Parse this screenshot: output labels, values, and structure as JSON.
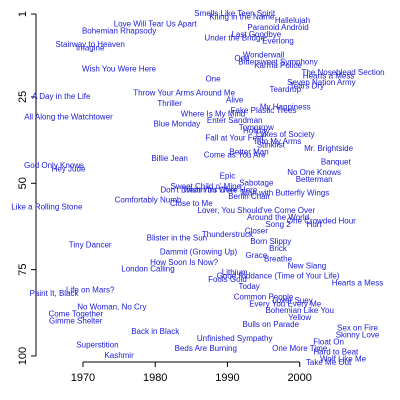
{
  "chart_data": {
    "type": "scatter",
    "title": "",
    "xlabel": "",
    "ylabel": "",
    "xlim": [
      1963.5,
      2012.5
    ],
    "ylim": [
      100,
      1
    ],
    "y_reversed": true,
    "x_ticks": [
      1970,
      1980,
      1990,
      2000
    ],
    "y_ticks": [
      1,
      25,
      50,
      75,
      100
    ],
    "grid": false,
    "legend": "none",
    "point_color": "#1a1adb",
    "points": [
      {
        "label": "Smells Like Teen Spirit",
        "x": 1991,
        "y": 1
      },
      {
        "label": "Kiling in the Name",
        "x": 1992,
        "y": 2
      },
      {
        "label": "Hallelujah",
        "x": 1999,
        "y": 3
      },
      {
        "label": "Love Will Tear Us Apart",
        "x": 1980,
        "y": 4
      },
      {
        "label": "Paranoid Android",
        "x": 1997,
        "y": 5
      },
      {
        "label": "Bohemian Rhapsody",
        "x": 1975,
        "y": 6
      },
      {
        "label": "Last Goodbye",
        "x": 1994,
        "y": 7
      },
      {
        "label": "Under the Bridge",
        "x": 1991,
        "y": 8
      },
      {
        "label": "Everlong",
        "x": 1997,
        "y": 9
      },
      {
        "label": "Stairway to Heaven",
        "x": 1971,
        "y": 10
      },
      {
        "label": "Imagine",
        "x": 1971,
        "y": 11
      },
      {
        "label": "Wonderwall",
        "x": 1995,
        "y": 13
      },
      {
        "label": "One",
        "x": 1992,
        "y": 14
      },
      {
        "label": "Bittersweet Symphony",
        "x": 1997,
        "y": 15
      },
      {
        "label": "Karma Police",
        "x": 1997,
        "y": 16
      },
      {
        "label": "Wish You Were Here",
        "x": 1975,
        "y": 17
      },
      {
        "label": "The Noseblead Section",
        "x": 2006,
        "y": 18
      },
      {
        "label": "Hearts a Mess",
        "x": 2004,
        "y": 19
      },
      {
        "label": "One",
        "x": 1988,
        "y": 20
      },
      {
        "label": "Seven Nation Army",
        "x": 2003,
        "y": 21
      },
      {
        "label": "Tears Dry",
        "x": 2001,
        "y": 22
      },
      {
        "label": "Teardrop",
        "x": 1998,
        "y": 23
      },
      {
        "label": "Throw Your Arms Around Me",
        "x": 1984,
        "y": 24
      },
      {
        "label": "A Day in the Life",
        "x": 1967,
        "y": 25
      },
      {
        "label": "Alive",
        "x": 1991,
        "y": 26
      },
      {
        "label": "Thriller",
        "x": 1982,
        "y": 27
      },
      {
        "label": "My Happiness",
        "x": 1998,
        "y": 28
      },
      {
        "label": "Fake Plastic Trees",
        "x": 1995,
        "y": 29
      },
      {
        "label": "Where Is My Mind",
        "x": 1988,
        "y": 30
      },
      {
        "label": "All Along the Watchtower",
        "x": 1968,
        "y": 31
      },
      {
        "label": "Enter Sandman",
        "x": 1991,
        "y": 32
      },
      {
        "label": "Blue Monday",
        "x": 1983,
        "y": 33
      },
      {
        "label": "Tomorrow",
        "x": 1994,
        "y": 34
      },
      {
        "label": "Holiday",
        "x": 1994,
        "y": 35
      },
      {
        "label": "Lakes of Society",
        "x": 1998,
        "y": 36
      },
      {
        "label": "Fall at Your Feet",
        "x": 1991,
        "y": 37
      },
      {
        "label": "Into My Arms",
        "x": 1997,
        "y": 38
      },
      {
        "label": "Stinkfist",
        "x": 1996,
        "y": 39
      },
      {
        "label": "Mr. Brightside",
        "x": 2004,
        "y": 40
      },
      {
        "label": "Better Man",
        "x": 1993,
        "y": 41
      },
      {
        "label": "Come as You Are",
        "x": 1991,
        "y": 42
      },
      {
        "label": "Billie Jean",
        "x": 1982,
        "y": 43
      },
      {
        "label": "Banquet",
        "x": 2005,
        "y": 44
      },
      {
        "label": "God Only Knows",
        "x": 1966,
        "y": 45
      },
      {
        "label": "Hey Jude",
        "x": 1968,
        "y": 46
      },
      {
        "label": "No One Knows",
        "x": 2002,
        "y": 47
      },
      {
        "label": "Epic",
        "x": 1990,
        "y": 48
      },
      {
        "label": "Betterman",
        "x": 2002,
        "y": 49
      },
      {
        "label": "Sabotage",
        "x": 1994,
        "y": 50
      },
      {
        "label": "Sweet Child o' Mine",
        "x": 1987,
        "y": 51
      },
      {
        "label": "Don't Dream It's Over",
        "x": 1986,
        "y": 52
      },
      {
        "label": "Wish You Were Here",
        "x": 1989,
        "y": 52
      },
      {
        "label": "Man with Butterfly Wings",
        "x": 1998,
        "y": 53
      },
      {
        "label": "Berlin Chair",
        "x": 1993,
        "y": 54
      },
      {
        "label": "Comfortably Numb",
        "x": 1979,
        "y": 55
      },
      {
        "label": "Close to Me",
        "x": 1985,
        "y": 56
      },
      {
        "label": "Like a Rolling Stone",
        "x": 1965,
        "y": 57
      },
      {
        "label": "Lover, You Should've Come Over",
        "x": 1994,
        "y": 58
      },
      {
        "label": "Around the World",
        "x": 1997,
        "y": 60
      },
      {
        "label": "Song 2",
        "x": 1997,
        "y": 62
      },
      {
        "label": "One Crowded Hour",
        "x": 2003,
        "y": 61
      },
      {
        "label": "Hurt",
        "x": 2002,
        "y": 62
      },
      {
        "label": "Closer",
        "x": 1994,
        "y": 64
      },
      {
        "label": "Thunderstruck",
        "x": 1990,
        "y": 65
      },
      {
        "label": "Blister in the Sun",
        "x": 1983,
        "y": 66
      },
      {
        "label": "Born Slippy",
        "x": 1996,
        "y": 67
      },
      {
        "label": "Tiny Dancer",
        "x": 1971,
        "y": 68
      },
      {
        "label": "Brick",
        "x": 1997,
        "y": 69
      },
      {
        "label": "Dammit (Growing Up)",
        "x": 1986,
        "y": 70
      },
      {
        "label": "Grace",
        "x": 1994,
        "y": 71
      },
      {
        "label": "Breathe",
        "x": 1997,
        "y": 72
      },
      {
        "label": "How Soon Is Now?",
        "x": 1984,
        "y": 73
      },
      {
        "label": "New Slang",
        "x": 2001,
        "y": 74
      },
      {
        "label": "London Calling",
        "x": 1979,
        "y": 75
      },
      {
        "label": "Lithium",
        "x": 1991,
        "y": 76
      },
      {
        "label": "Good Riddance (Time of Your Life)",
        "x": 1997,
        "y": 77
      },
      {
        "label": "Fools Gold",
        "x": 1990,
        "y": 78
      },
      {
        "label": "Hearts a Mess",
        "x": 2008,
        "y": 79
      },
      {
        "label": "Today",
        "x": 1993,
        "y": 80
      },
      {
        "label": "Life on Mars?",
        "x": 1971,
        "y": 81
      },
      {
        "label": "Paint It, Black",
        "x": 1966,
        "y": 82
      },
      {
        "label": "Common People",
        "x": 1995,
        "y": 83
      },
      {
        "label": "Lover Suey",
        "x": 1999,
        "y": 84
      },
      {
        "label": "Every You Every Me",
        "x": 1998,
        "y": 85
      },
      {
        "label": "No Woman, No Cry",
        "x": 1974,
        "y": 86
      },
      {
        "label": "Bohemian Like You",
        "x": 2000,
        "y": 87
      },
      {
        "label": "Come Together",
        "x": 1969,
        "y": 88
      },
      {
        "label": "Yellow",
        "x": 2000,
        "y": 89
      },
      {
        "label": "Gimme Shelter",
        "x": 1969,
        "y": 90
      },
      {
        "label": "Bulls on Parade",
        "x": 1996,
        "y": 91
      },
      {
        "label": "Sex on Fire",
        "x": 2008,
        "y": 92
      },
      {
        "label": "Back in Black",
        "x": 1980,
        "y": 93
      },
      {
        "label": "Skinny Love",
        "x": 2008,
        "y": 94
      },
      {
        "label": "Unfinished Sympathy",
        "x": 1991,
        "y": 95
      },
      {
        "label": "Float On",
        "x": 2004,
        "y": 96
      },
      {
        "label": "Superstition",
        "x": 1972,
        "y": 97
      },
      {
        "label": "One More Time",
        "x": 2000,
        "y": 98
      },
      {
        "label": "Beds Are Burning",
        "x": 1987,
        "y": 98
      },
      {
        "label": "Hard to Beat",
        "x": 2005,
        "y": 99
      },
      {
        "label": "Kashmir",
        "x": 1975,
        "y": 100
      },
      {
        "label": "Wolf Like Me",
        "x": 2006,
        "y": 101
      },
      {
        "label": "Take Me Out",
        "x": 2004,
        "y": 102
      }
    ]
  }
}
